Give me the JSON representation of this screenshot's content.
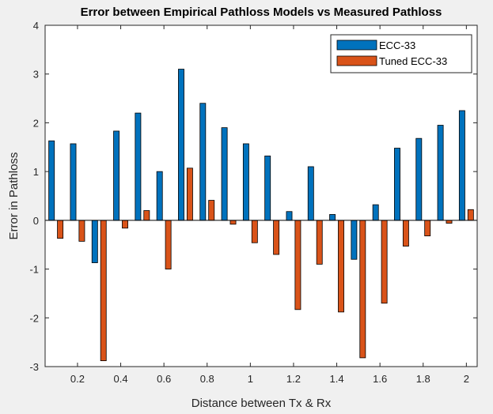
{
  "chart_data": {
    "type": "bar",
    "title": "Error between Empirical Pathloss Models vs Measured Pathloss",
    "xlabel": "Distance between Tx & Rx",
    "ylabel": "Error in Pathloss",
    "xlim": [
      0.05,
      2.05
    ],
    "ylim": [
      -3,
      4
    ],
    "xticks": [
      0.2,
      0.4,
      0.6,
      0.8,
      1,
      1.2,
      1.4,
      1.6,
      1.8,
      2
    ],
    "xtick_labels": [
      "0.2",
      "0.4",
      "0.6",
      "0.8",
      "1",
      "1.2",
      "1.4",
      "1.6",
      "1.8",
      "2"
    ],
    "yticks": [
      -3,
      -2,
      -1,
      0,
      1,
      2,
      3,
      4
    ],
    "ytick_labels": [
      "-3",
      "-2",
      "-1",
      "0",
      "1",
      "2",
      "3",
      "4"
    ],
    "grid": false,
    "legend_position": "top-right",
    "categories": [
      0.1,
      0.2,
      0.3,
      0.4,
      0.5,
      0.6,
      0.7,
      0.8,
      0.9,
      1.0,
      1.1,
      1.2,
      1.3,
      1.4,
      1.5,
      1.6,
      1.7,
      1.8,
      1.9,
      2.0
    ],
    "series": [
      {
        "name": "ECC-33",
        "color": "#0072bd",
        "values": [
          1.63,
          1.57,
          -0.87,
          1.83,
          2.2,
          1.0,
          3.1,
          2.4,
          1.9,
          1.57,
          1.32,
          0.18,
          1.1,
          0.12,
          -0.8,
          0.32,
          1.48,
          1.68,
          1.95,
          2.25
        ]
      },
      {
        "name": "Tuned ECC-33",
        "color": "#d95319",
        "values": [
          -0.37,
          -0.43,
          -2.88,
          -0.16,
          0.2,
          -1.0,
          1.07,
          0.41,
          -0.08,
          -0.46,
          -0.7,
          -1.83,
          -0.9,
          -1.88,
          -2.82,
          -1.7,
          -0.53,
          -0.32,
          -0.06,
          0.22
        ]
      }
    ]
  }
}
